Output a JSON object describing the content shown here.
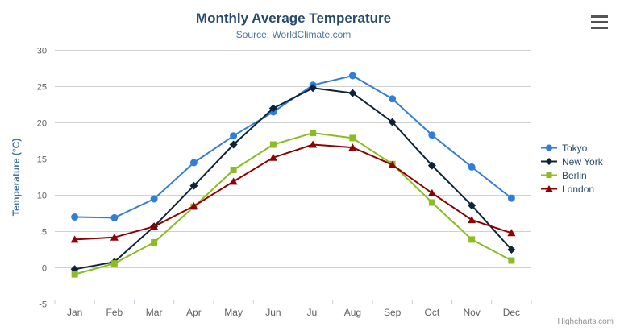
{
  "chart_data": {
    "type": "line",
    "title": "Monthly Average Temperature",
    "subtitle": "Source: WorldClimate.com",
    "categories": [
      "Jan",
      "Feb",
      "Mar",
      "Apr",
      "May",
      "Jun",
      "Jul",
      "Aug",
      "Sep",
      "Oct",
      "Nov",
      "Dec"
    ],
    "xlabel": "",
    "ylabel": "Temperature (°C)",
    "ylim": [
      -5,
      30
    ],
    "ytick_interval": 5,
    "ytick_labels": [
      "-5",
      "0",
      "5",
      "10",
      "15",
      "20",
      "25",
      "30"
    ],
    "grid": true,
    "legend_position": "right",
    "series": [
      {
        "name": "Tokyo",
        "color": "#2f7ed8",
        "marker": "circle",
        "values": [
          7.0,
          6.9,
          9.5,
          14.5,
          18.2,
          21.5,
          25.2,
          26.5,
          23.3,
          18.3,
          13.9,
          9.6
        ]
      },
      {
        "name": "New York",
        "color": "#0d233a",
        "marker": "diamond",
        "values": [
          -0.2,
          0.8,
          5.7,
          11.3,
          17.0,
          22.0,
          24.8,
          24.1,
          20.1,
          14.1,
          8.6,
          2.5
        ]
      },
      {
        "name": "Berlin",
        "color": "#8bbc21",
        "marker": "square",
        "values": [
          -0.9,
          0.6,
          3.5,
          8.4,
          13.5,
          17.0,
          18.6,
          17.9,
          14.3,
          9.0,
          3.9,
          1.0
        ]
      },
      {
        "name": "London",
        "color": "#910000",
        "marker": "triangle",
        "values": [
          3.9,
          4.2,
          5.7,
          8.5,
          11.9,
          15.2,
          17.0,
          16.6,
          14.2,
          10.3,
          6.6,
          4.8
        ]
      }
    ],
    "credits": "Highcharts.com",
    "colors": {
      "title": "#274b6d",
      "subtitle": "#4d759e",
      "axis_title": "#4572a7",
      "axis_labels": "#606060",
      "grid_line": "#d0d0d0",
      "axis_line": "#c0d0e0",
      "legend_text": "#274b6d",
      "credits_text": "#909090",
      "menu_icon": "#555555"
    },
    "toolbar": {
      "export_menu_icon": "hamburger-icon"
    }
  }
}
